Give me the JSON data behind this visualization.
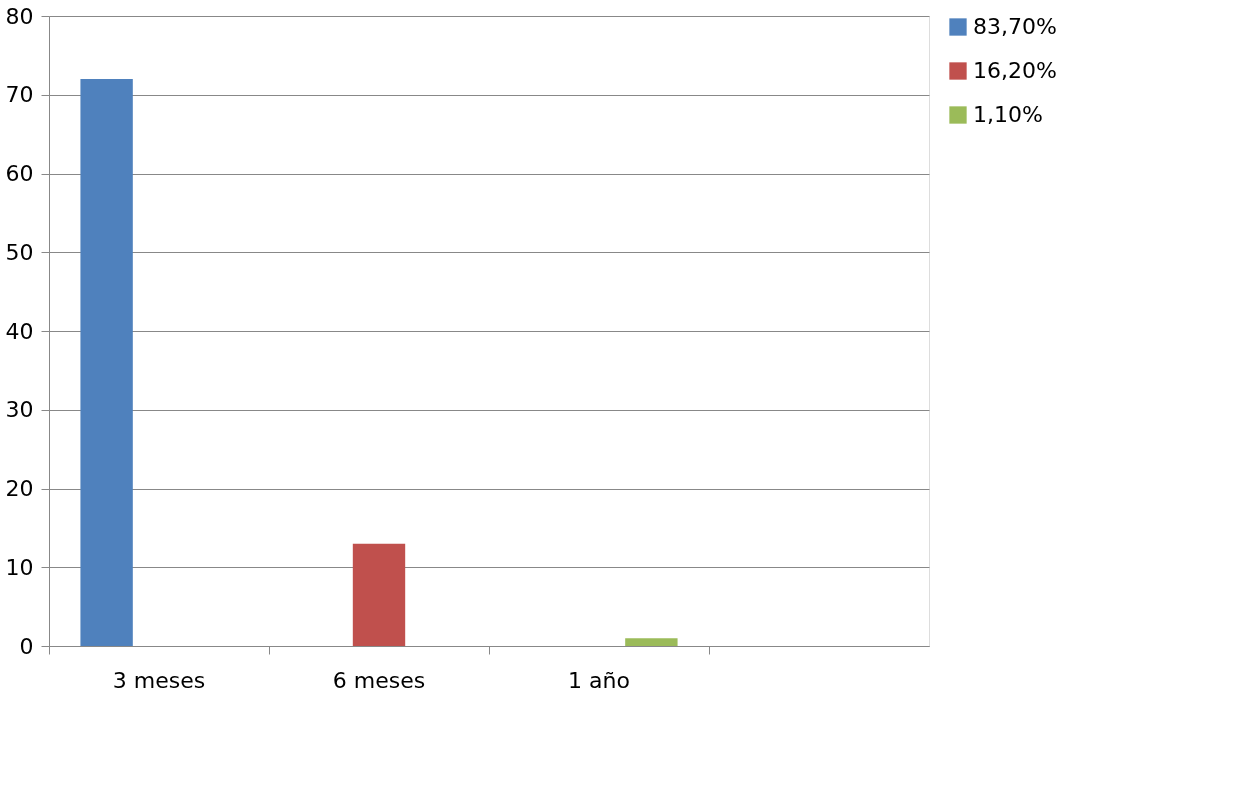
{
  "chart_data": {
    "type": "bar",
    "categories": [
      "3 meses",
      "6 meses",
      "1 año",
      null
    ],
    "series": [
      {
        "name": "83,70%",
        "color": "#4f81bd",
        "values": [
          72,
          null,
          null,
          null
        ]
      },
      {
        "name": "16,20%",
        "color": "#c0504d",
        "values": [
          null,
          13,
          null,
          null
        ]
      },
      {
        "name": "1,10%",
        "color": "#9bbb59",
        "values": [
          null,
          null,
          1,
          null
        ]
      }
    ],
    "ylim": [
      0,
      80
    ],
    "yticks": [
      0,
      10,
      20,
      30,
      40,
      50,
      60,
      70,
      80
    ],
    "grid": "y",
    "legend": "right"
  }
}
